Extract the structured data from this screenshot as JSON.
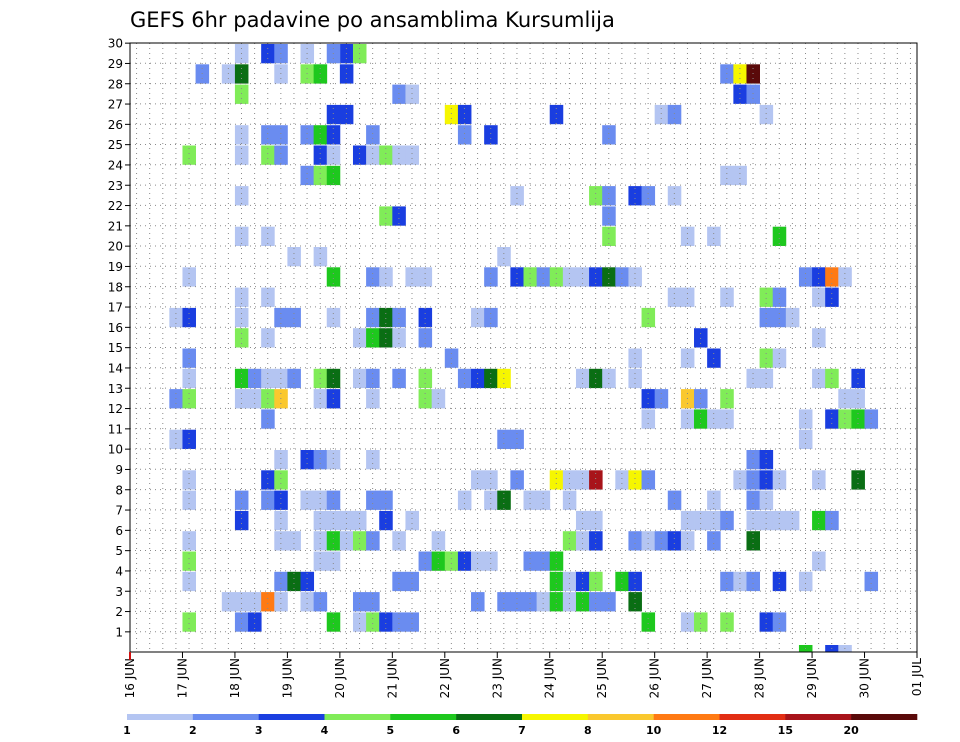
{
  "chart_data": {
    "type": "heatmap",
    "title": "GEFS 6hr padavine po ansamblima Kursumlija",
    "y_ticks": [
      "1",
      "2",
      "3",
      "4",
      "5",
      "6",
      "7",
      "8",
      "9",
      "10",
      "11",
      "12",
      "13",
      "14",
      "15",
      "16",
      "17",
      "18",
      "19",
      "20",
      "21",
      "22",
      "23",
      "24",
      "25",
      "26",
      "27",
      "28",
      "29",
      "30"
    ],
    "x_ticks": [
      "16 JUN",
      "17 JUN",
      "18 JUN",
      "19 JUN",
      "20 JUN",
      "21 JUN",
      "22 JUN",
      "23 JUN",
      "24 JUN",
      "25 JUN",
      "26 JUN",
      "27 JUN",
      "28 JUN",
      "29 JUN",
      "30 JUN",
      "01 JUL"
    ],
    "ylim": [
      1,
      30
    ],
    "grid": true,
    "legend": {
      "placement": "bottom",
      "labels": [
        "1",
        "2",
        "3",
        "4",
        "5",
        "6",
        "7",
        "8",
        "10",
        "12",
        "15",
        "20"
      ],
      "colors": [
        "#b4c5f2",
        "#6a8cf0",
        "#1a3ee0",
        "#80ec58",
        "#1ec81e",
        "#0a6e14",
        "#f6f600",
        "#fac82e",
        "#ff7a14",
        "#e22e14",
        "#a8141a",
        "#5a0a0a"
      ]
    },
    "cells": [
      [
        5,
        29,
        2
      ],
      [
        7,
        29,
        1
      ],
      [
        8,
        29,
        6
      ],
      [
        8,
        28,
        4
      ],
      [
        11,
        29,
        1
      ],
      [
        13,
        29,
        4
      ],
      [
        14,
        29,
        5
      ],
      [
        16,
        29,
        3
      ],
      [
        16,
        30,
        3
      ],
      [
        15,
        30,
        2
      ],
      [
        13,
        30,
        1
      ],
      [
        17,
        30,
        4
      ],
      [
        10,
        30,
        3
      ],
      [
        11,
        30,
        2
      ],
      [
        8,
        30,
        1
      ],
      [
        20,
        28,
        2
      ],
      [
        21,
        28,
        1
      ],
      [
        45,
        29,
        2
      ],
      [
        46,
        29,
        7
      ],
      [
        47,
        29,
        12
      ],
      [
        46,
        28,
        3
      ],
      [
        47,
        28,
        2
      ],
      [
        15,
        27,
        3
      ],
      [
        16,
        27,
        3
      ],
      [
        24,
        27,
        7
      ],
      [
        25,
        27,
        3
      ],
      [
        32,
        27,
        3
      ],
      [
        40,
        27,
        1
      ],
      [
        41,
        27,
        2
      ],
      [
        48,
        27,
        1
      ],
      [
        8,
        26,
        1
      ],
      [
        10,
        26,
        2
      ],
      [
        11,
        26,
        2
      ],
      [
        13,
        26,
        2
      ],
      [
        14,
        26,
        5
      ],
      [
        15,
        26,
        3
      ],
      [
        18,
        26,
        2
      ],
      [
        25,
        26,
        2
      ],
      [
        27,
        26,
        3
      ],
      [
        36,
        26,
        2
      ],
      [
        4,
        25,
        4
      ],
      [
        8,
        25,
        1
      ],
      [
        10,
        25,
        4
      ],
      [
        11,
        25,
        2
      ],
      [
        14,
        25,
        3
      ],
      [
        15,
        25,
        1
      ],
      [
        17,
        25,
        3
      ],
      [
        18,
        25,
        1
      ],
      [
        19,
        25,
        4
      ],
      [
        20,
        25,
        1
      ],
      [
        21,
        25,
        1
      ],
      [
        13,
        24,
        2
      ],
      [
        14,
        24,
        4
      ],
      [
        15,
        24,
        5
      ],
      [
        45,
        24,
        1
      ],
      [
        46,
        24,
        1
      ],
      [
        8,
        23,
        1
      ],
      [
        29,
        23,
        1
      ],
      [
        35,
        23,
        4
      ],
      [
        36,
        23,
        2
      ],
      [
        38,
        23,
        3
      ],
      [
        39,
        23,
        2
      ],
      [
        41,
        23,
        1
      ],
      [
        19,
        22,
        4
      ],
      [
        20,
        22,
        3
      ],
      [
        36,
        22,
        2
      ],
      [
        8,
        21,
        1
      ],
      [
        10,
        21,
        1
      ],
      [
        36,
        21,
        4
      ],
      [
        42,
        21,
        1
      ],
      [
        44,
        21,
        1
      ],
      [
        49,
        21,
        5
      ],
      [
        12,
        20,
        1
      ],
      [
        14,
        20,
        1
      ],
      [
        28,
        20,
        1
      ],
      [
        4,
        19,
        1
      ],
      [
        15,
        19,
        5
      ],
      [
        18,
        19,
        2
      ],
      [
        19,
        19,
        1
      ],
      [
        21,
        19,
        1
      ],
      [
        22,
        19,
        1
      ],
      [
        27,
        19,
        2
      ],
      [
        29,
        19,
        3
      ],
      [
        30,
        19,
        4
      ],
      [
        31,
        19,
        2
      ],
      [
        32,
        19,
        4
      ],
      [
        33,
        19,
        1
      ],
      [
        34,
        19,
        1
      ],
      [
        35,
        19,
        3
      ],
      [
        36,
        19,
        6
      ],
      [
        37,
        19,
        2
      ],
      [
        38,
        19,
        1
      ],
      [
        51,
        19,
        2
      ],
      [
        52,
        19,
        3
      ],
      [
        53,
        19,
        9
      ],
      [
        54,
        19,
        1
      ],
      [
        8,
        18,
        1
      ],
      [
        10,
        18,
        1
      ],
      [
        41,
        18,
        1
      ],
      [
        42,
        18,
        1
      ],
      [
        45,
        18,
        1
      ],
      [
        48,
        18,
        4
      ],
      [
        49,
        18,
        2
      ],
      [
        52,
        18,
        1
      ],
      [
        53,
        18,
        3
      ],
      [
        3,
        17,
        1
      ],
      [
        4,
        17,
        3
      ],
      [
        8,
        17,
        1
      ],
      [
        11,
        17,
        2
      ],
      [
        12,
        17,
        2
      ],
      [
        15,
        17,
        1
      ],
      [
        18,
        17,
        2
      ],
      [
        19,
        17,
        6
      ],
      [
        20,
        17,
        2
      ],
      [
        22,
        17,
        3
      ],
      [
        26,
        17,
        1
      ],
      [
        27,
        17,
        2
      ],
      [
        39,
        17,
        4
      ],
      [
        48,
        17,
        2
      ],
      [
        49,
        17,
        2
      ],
      [
        50,
        17,
        1
      ],
      [
        8,
        16,
        4
      ],
      [
        10,
        16,
        1
      ],
      [
        17,
        16,
        1
      ],
      [
        18,
        16,
        5
      ],
      [
        19,
        16,
        6
      ],
      [
        20,
        16,
        1
      ],
      [
        22,
        16,
        2
      ],
      [
        43,
        16,
        3
      ],
      [
        52,
        16,
        1
      ],
      [
        4,
        15,
        2
      ],
      [
        24,
        15,
        2
      ],
      [
        38,
        15,
        1
      ],
      [
        42,
        15,
        1
      ],
      [
        44,
        15,
        3
      ],
      [
        48,
        15,
        4
      ],
      [
        49,
        15,
        1
      ],
      [
        4,
        14,
        1
      ],
      [
        8,
        14,
        5
      ],
      [
        9,
        14,
        2
      ],
      [
        10,
        14,
        1
      ],
      [
        11,
        14,
        1
      ],
      [
        12,
        14,
        2
      ],
      [
        14,
        14,
        4
      ],
      [
        15,
        14,
        6
      ],
      [
        17,
        14,
        1
      ],
      [
        18,
        14,
        2
      ],
      [
        20,
        14,
        2
      ],
      [
        22,
        14,
        4
      ],
      [
        25,
        14,
        2
      ],
      [
        26,
        14,
        3
      ],
      [
        27,
        14,
        6
      ],
      [
        28,
        14,
        7
      ],
      [
        34,
        14,
        1
      ],
      [
        35,
        14,
        6
      ],
      [
        36,
        14,
        1
      ],
      [
        38,
        14,
        1
      ],
      [
        47,
        14,
        1
      ],
      [
        48,
        14,
        1
      ],
      [
        52,
        14,
        1
      ],
      [
        53,
        14,
        4
      ],
      [
        55,
        14,
        3
      ],
      [
        3,
        13,
        2
      ],
      [
        4,
        13,
        4
      ],
      [
        8,
        13,
        1
      ],
      [
        9,
        13,
        1
      ],
      [
        10,
        13,
        4
      ],
      [
        11,
        13,
        8
      ],
      [
        14,
        13,
        1
      ],
      [
        15,
        13,
        3
      ],
      [
        18,
        13,
        1
      ],
      [
        22,
        13,
        4
      ],
      [
        23,
        13,
        1
      ],
      [
        39,
        13,
        3
      ],
      [
        40,
        13,
        2
      ],
      [
        42,
        13,
        8
      ],
      [
        43,
        13,
        2
      ],
      [
        45,
        13,
        4
      ],
      [
        54,
        13,
        1
      ],
      [
        55,
        13,
        1
      ],
      [
        10,
        12,
        2
      ],
      [
        39,
        12,
        1
      ],
      [
        42,
        12,
        1
      ],
      [
        43,
        12,
        5
      ],
      [
        44,
        12,
        1
      ],
      [
        45,
        12,
        1
      ],
      [
        51,
        12,
        1
      ],
      [
        53,
        12,
        3
      ],
      [
        54,
        12,
        4
      ],
      [
        55,
        12,
        5
      ],
      [
        56,
        12,
        2
      ],
      [
        3,
        11,
        1
      ],
      [
        4,
        11,
        3
      ],
      [
        28,
        11,
        2
      ],
      [
        29,
        11,
        2
      ],
      [
        51,
        11,
        1
      ],
      [
        11,
        10,
        1
      ],
      [
        13,
        10,
        3
      ],
      [
        14,
        10,
        2
      ],
      [
        15,
        10,
        1
      ],
      [
        18,
        10,
        1
      ],
      [
        47,
        10,
        2
      ],
      [
        48,
        10,
        3
      ],
      [
        4,
        9,
        1
      ],
      [
        10,
        9,
        3
      ],
      [
        11,
        9,
        4
      ],
      [
        26,
        9,
        1
      ],
      [
        27,
        9,
        1
      ],
      [
        29,
        9,
        2
      ],
      [
        32,
        9,
        7
      ],
      [
        33,
        9,
        1
      ],
      [
        34,
        9,
        1
      ],
      [
        35,
        9,
        11
      ],
      [
        37,
        9,
        1
      ],
      [
        38,
        9,
        7
      ],
      [
        39,
        9,
        2
      ],
      [
        46,
        9,
        1
      ],
      [
        47,
        9,
        2
      ],
      [
        48,
        9,
        3
      ],
      [
        49,
        9,
        1
      ],
      [
        52,
        9,
        1
      ],
      [
        55,
        9,
        6
      ],
      [
        4,
        8,
        1
      ],
      [
        8,
        8,
        2
      ],
      [
        10,
        8,
        2
      ],
      [
        11,
        8,
        3
      ],
      [
        13,
        8,
        1
      ],
      [
        14,
        8,
        1
      ],
      [
        15,
        8,
        2
      ],
      [
        18,
        8,
        2
      ],
      [
        19,
        8,
        2
      ],
      [
        25,
        8,
        1
      ],
      [
        27,
        8,
        1
      ],
      [
        28,
        8,
        6
      ],
      [
        30,
        8,
        1
      ],
      [
        31,
        8,
        1
      ],
      [
        33,
        8,
        1
      ],
      [
        41,
        8,
        2
      ],
      [
        44,
        8,
        1
      ],
      [
        47,
        8,
        2
      ],
      [
        48,
        8,
        1
      ],
      [
        8,
        7,
        3
      ],
      [
        11,
        7,
        1
      ],
      [
        14,
        7,
        1
      ],
      [
        15,
        7,
        1
      ],
      [
        16,
        7,
        1
      ],
      [
        17,
        7,
        1
      ],
      [
        19,
        7,
        3
      ],
      [
        21,
        7,
        1
      ],
      [
        34,
        7,
        1
      ],
      [
        35,
        7,
        1
      ],
      [
        42,
        7,
        1
      ],
      [
        43,
        7,
        1
      ],
      [
        44,
        7,
        1
      ],
      [
        45,
        7,
        2
      ],
      [
        47,
        7,
        1
      ],
      [
        48,
        7,
        1
      ],
      [
        49,
        7,
        1
      ],
      [
        50,
        7,
        1
      ],
      [
        52,
        7,
        5
      ],
      [
        53,
        7,
        2
      ],
      [
        4,
        6,
        1
      ],
      [
        11,
        6,
        1
      ],
      [
        12,
        6,
        1
      ],
      [
        14,
        6,
        1
      ],
      [
        15,
        6,
        5
      ],
      [
        16,
        6,
        1
      ],
      [
        17,
        6,
        4
      ],
      [
        18,
        6,
        2
      ],
      [
        20,
        6,
        1
      ],
      [
        23,
        6,
        1
      ],
      [
        33,
        6,
        4
      ],
      [
        34,
        6,
        1
      ],
      [
        35,
        6,
        3
      ],
      [
        38,
        6,
        2
      ],
      [
        39,
        6,
        1
      ],
      [
        40,
        6,
        2
      ],
      [
        41,
        6,
        3
      ],
      [
        42,
        6,
        1
      ],
      [
        44,
        6,
        2
      ],
      [
        47,
        6,
        6
      ],
      [
        4,
        5,
        4
      ],
      [
        14,
        5,
        1
      ],
      [
        15,
        5,
        1
      ],
      [
        22,
        5,
        2
      ],
      [
        23,
        5,
        5
      ],
      [
        24,
        5,
        4
      ],
      [
        25,
        5,
        3
      ],
      [
        26,
        5,
        1
      ],
      [
        27,
        5,
        1
      ],
      [
        30,
        5,
        2
      ],
      [
        31,
        5,
        2
      ],
      [
        32,
        5,
        5
      ],
      [
        52,
        5,
        1
      ],
      [
        4,
        4,
        1
      ],
      [
        11,
        4,
        2
      ],
      [
        12,
        4,
        6
      ],
      [
        13,
        4,
        3
      ],
      [
        20,
        4,
        2
      ],
      [
        21,
        4,
        2
      ],
      [
        32,
        4,
        5
      ],
      [
        33,
        4,
        1
      ],
      [
        34,
        4,
        3
      ],
      [
        35,
        4,
        4
      ],
      [
        37,
        4,
        5
      ],
      [
        38,
        4,
        3
      ],
      [
        45,
        4,
        2
      ],
      [
        46,
        4,
        1
      ],
      [
        47,
        4,
        2
      ],
      [
        49,
        4,
        3
      ],
      [
        51,
        4,
        1
      ],
      [
        56,
        4,
        2
      ],
      [
        7,
        3,
        1
      ],
      [
        8,
        3,
        1
      ],
      [
        9,
        3,
        1
      ],
      [
        10,
        3,
        9
      ],
      [
        11,
        3,
        1
      ],
      [
        13,
        3,
        1
      ],
      [
        14,
        3,
        2
      ],
      [
        17,
        3,
        2
      ],
      [
        18,
        3,
        2
      ],
      [
        26,
        3,
        2
      ],
      [
        28,
        3,
        2
      ],
      [
        29,
        3,
        2
      ],
      [
        30,
        3,
        2
      ],
      [
        31,
        3,
        1
      ],
      [
        32,
        3,
        5
      ],
      [
        33,
        3,
        1
      ],
      [
        34,
        3,
        5
      ],
      [
        35,
        3,
        2
      ],
      [
        36,
        3,
        2
      ],
      [
        38,
        3,
        6
      ],
      [
        4,
        2,
        4
      ],
      [
        8,
        2,
        2
      ],
      [
        9,
        2,
        3
      ],
      [
        15,
        2,
        5
      ],
      [
        17,
        2,
        1
      ],
      [
        18,
        2,
        4
      ],
      [
        19,
        2,
        3
      ],
      [
        20,
        2,
        2
      ],
      [
        21,
        2,
        2
      ],
      [
        39,
        2,
        5
      ],
      [
        42,
        2,
        1
      ],
      [
        43,
        2,
        4
      ],
      [
        45,
        2,
        4
      ],
      [
        48,
        2,
        3
      ],
      [
        49,
        2,
        2
      ],
      [
        51,
        1,
        5
      ],
      [
        53,
        1,
        3
      ],
      [
        54,
        1,
        1
      ]
    ]
  }
}
